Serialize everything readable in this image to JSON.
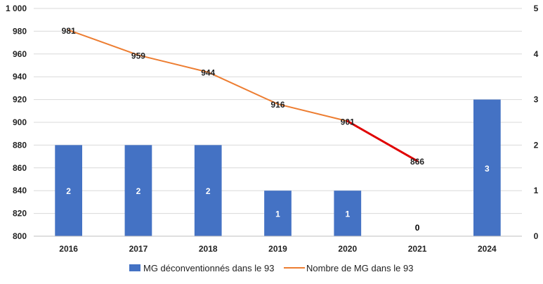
{
  "chart_data": {
    "type": "bar",
    "categories": [
      "2016",
      "2017",
      "2018",
      "2019",
      "2020",
      "2021",
      "2024"
    ],
    "series": [
      {
        "name": "MG déconventionnés dans le 93",
        "type": "bar",
        "axis": "right",
        "values": [
          2,
          2,
          2,
          1,
          1,
          0,
          3
        ],
        "labels": [
          "2",
          "2",
          "2",
          "1",
          "1",
          "0",
          "3"
        ],
        "color": "#4472c4"
      },
      {
        "name": "Nombre de MG dans le 93",
        "type": "line",
        "axis": "left",
        "values": [
          981,
          959,
          944,
          916,
          901,
          866,
          null
        ],
        "labels": [
          "981",
          "959",
          "944",
          "916",
          "901",
          "866",
          ""
        ],
        "color": "#ed7d31",
        "highlight_segment_color": "#e00000",
        "highlight_segment": [
          "2020",
          "2021"
        ]
      }
    ],
    "ylim": [
      800,
      1000
    ],
    "ylim_right": [
      0,
      5
    ],
    "yticks": [
      "800",
      "820",
      "840",
      "860",
      "880",
      "900",
      "920",
      "940",
      "960",
      "980",
      "1 000"
    ],
    "yticks_right": [
      "0",
      "1",
      "2",
      "3",
      "4",
      "5"
    ],
    "grid": true,
    "legend_position": "bottom"
  }
}
